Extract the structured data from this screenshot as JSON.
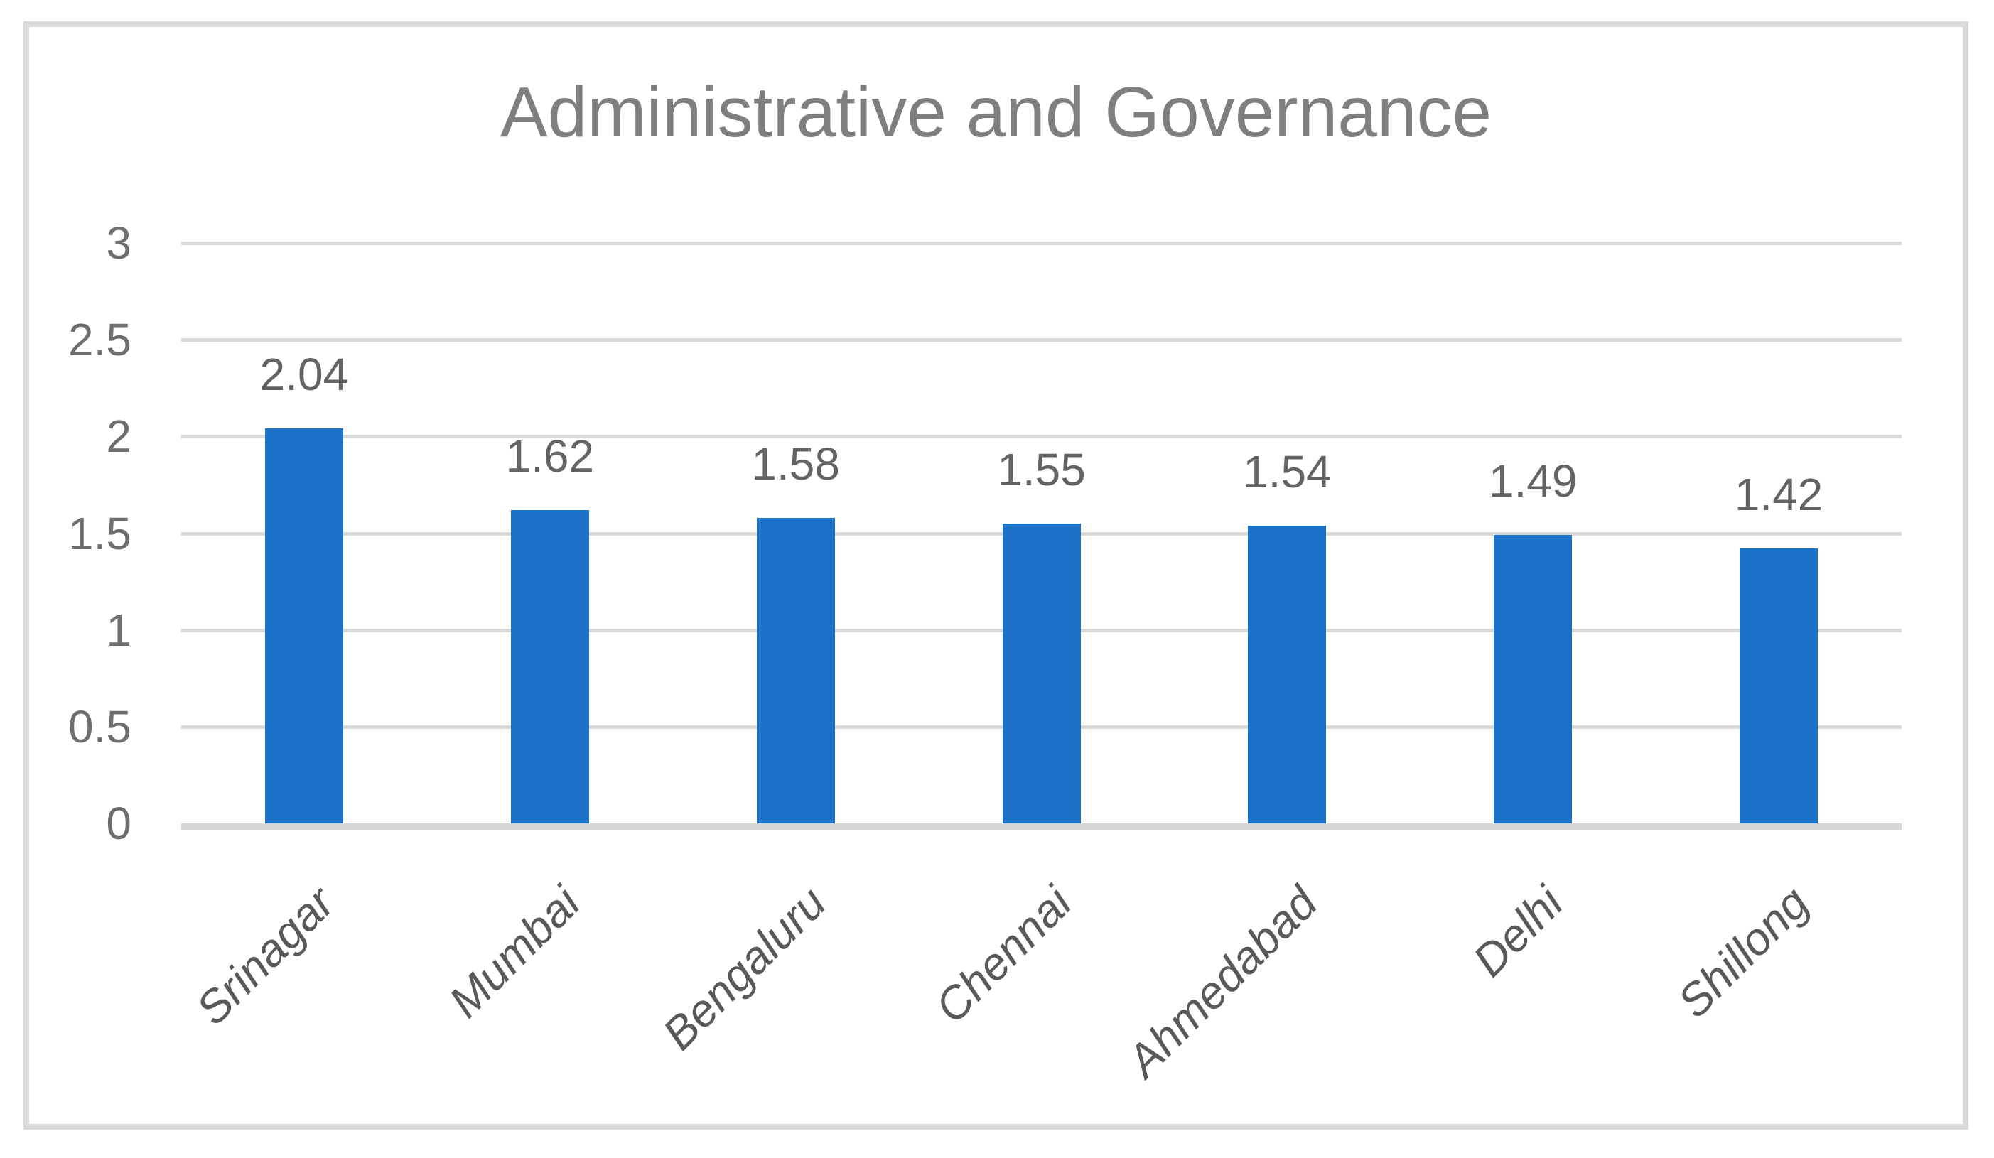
{
  "chart_data": {
    "type": "bar",
    "title": "Administrative and Governance",
    "categories": [
      "Srinagar",
      "Mumbai",
      "Bengaluru",
      "Chennai",
      "Ahmedabad",
      "Delhi",
      "Shillong"
    ],
    "values": [
      2.04,
      1.62,
      1.58,
      1.55,
      1.54,
      1.49,
      1.42
    ],
    "value_labels": [
      "2.04",
      "1.62",
      "1.58",
      "1.55",
      "1.54",
      "1.49",
      "1.42"
    ],
    "y_ticks_top_to_bottom": [
      "3",
      "2.5",
      "2",
      "1.5",
      "1",
      "0.5",
      "0"
    ],
    "ylim": [
      0,
      3
    ],
    "y_step": 0.5,
    "xlabel": "",
    "ylabel": "",
    "grid": true,
    "legend": false,
    "layout_hints": {
      "bar_label_position": "above-bar",
      "category_label_rotation_deg": -45,
      "legend_position": "none"
    },
    "colors": {
      "bar": "#1B72C6",
      "gridline": "#D9D9D9",
      "axis_line": "#D6D6D6",
      "border": "#D9D9D9",
      "background": "#FFFFFF",
      "title_text": "#7F7F7F",
      "tick_text": "#6E6E6E",
      "value_text": "#636363",
      "category_text": "#595959"
    }
  }
}
